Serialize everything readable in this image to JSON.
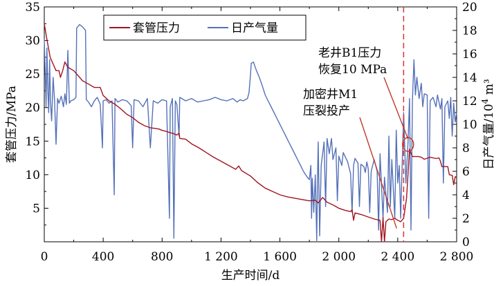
{
  "chart_data": {
    "type": "line",
    "dual_axis": true,
    "xlabel": "生产时间/d",
    "ylabel_left": "套管压力/MPa",
    "ylabel_right": "日产气量/10⁴ m³",
    "ylabel_right_main": "日产气量/10",
    "ylabel_right_sup": "4",
    "ylabel_right_tail": " m³",
    "xlim": [
      0,
      2800
    ],
    "ylim_left": [
      0,
      35
    ],
    "ylim_right": [
      0,
      20
    ],
    "x_ticks": [
      0,
      400,
      800,
      1200,
      1600,
      2000,
      2400,
      2800
    ],
    "x_tick_labels": [
      "0",
      "400",
      "800",
      "1 200",
      "1 600",
      "2 000",
      "2 400",
      "2 800"
    ],
    "y_left_ticks": [
      5,
      10,
      15,
      20,
      25,
      30,
      35
    ],
    "y_right_ticks": [
      0,
      2,
      4,
      6,
      8,
      10,
      12,
      14,
      16,
      18,
      20
    ],
    "legend_position": "top-center",
    "grid": false,
    "colors": {
      "pressure": "#a0141e",
      "gas": "#5470b8",
      "reference_line": "#e03030",
      "annotation": "#c0392b"
    },
    "series": [
      {
        "name": "套管压力",
        "axis": "left",
        "color": "#a0141e",
        "points": [
          [
            0,
            32.5
          ],
          [
            15,
            30.5
          ],
          [
            40,
            27.5
          ],
          [
            80,
            25.5
          ],
          [
            100,
            25.5
          ],
          [
            110,
            24.5
          ],
          [
            125,
            25.5
          ],
          [
            140,
            26.8
          ],
          [
            160,
            26.0
          ],
          [
            200,
            25.5
          ],
          [
            240,
            24.5
          ],
          [
            260,
            24.0
          ],
          [
            300,
            23.5
          ],
          [
            340,
            23.0
          ],
          [
            380,
            23.0
          ],
          [
            400,
            21.8
          ],
          [
            440,
            21.0
          ],
          [
            480,
            20.5
          ],
          [
            520,
            19.8
          ],
          [
            560,
            19.0
          ],
          [
            600,
            18.5
          ],
          [
            640,
            17.8
          ],
          [
            680,
            17.3
          ],
          [
            720,
            17.0
          ],
          [
            750,
            16.9
          ],
          [
            780,
            16.8
          ],
          [
            800,
            16.6
          ],
          [
            820,
            16.5
          ],
          [
            850,
            16.3
          ],
          [
            880,
            16.1
          ],
          [
            900,
            15.9
          ],
          [
            915,
            16.2
          ],
          [
            920,
            15.4
          ],
          [
            960,
            15.3
          ],
          [
            1000,
            14.6
          ],
          [
            1050,
            14.0
          ],
          [
            1100,
            13.3
          ],
          [
            1150,
            12.6
          ],
          [
            1200,
            12.0
          ],
          [
            1250,
            11.4
          ],
          [
            1300,
            10.8
          ],
          [
            1320,
            11.3
          ],
          [
            1340,
            10.6
          ],
          [
            1400,
            9.8
          ],
          [
            1450,
            8.8
          ],
          [
            1500,
            8.0
          ],
          [
            1550,
            7.5
          ],
          [
            1600,
            7.0
          ],
          [
            1650,
            6.7
          ],
          [
            1700,
            6.5
          ],
          [
            1750,
            6.3
          ],
          [
            1800,
            6.1
          ],
          [
            1840,
            6.2
          ],
          [
            1860,
            5.8
          ],
          [
            1890,
            6.6
          ],
          [
            1920,
            5.9
          ],
          [
            1960,
            5.5
          ],
          [
            2000,
            5.0
          ],
          [
            2040,
            4.7
          ],
          [
            2080,
            4.5
          ],
          [
            2090,
            4.8
          ],
          [
            2100,
            3.2
          ],
          [
            2110,
            4.3
          ],
          [
            2160,
            4.0
          ],
          [
            2200,
            3.7
          ],
          [
            2240,
            3.4
          ],
          [
            2280,
            3.2
          ],
          [
            2290,
            0.0
          ],
          [
            2300,
            3.6
          ],
          [
            2310,
            0.0
          ],
          [
            2320,
            3.0
          ],
          [
            2340,
            3.4
          ],
          [
            2360,
            3.3
          ],
          [
            2380,
            3.5
          ],
          [
            2400,
            3.2
          ],
          [
            2420,
            3.0
          ],
          [
            2440,
            3.5
          ],
          [
            2460,
            6.5
          ],
          [
            2480,
            13.8
          ],
          [
            2485,
            13.5
          ],
          [
            2500,
            12.7
          ],
          [
            2540,
            12.7
          ],
          [
            2560,
            12.6
          ],
          [
            2580,
            12.3
          ],
          [
            2620,
            12.6
          ],
          [
            2660,
            12.4
          ],
          [
            2680,
            12.5
          ],
          [
            2690,
            12.0
          ],
          [
            2700,
            11.2
          ],
          [
            2740,
            11.2
          ],
          [
            2750,
            10.0
          ],
          [
            2770,
            9.9
          ],
          [
            2780,
            8.5
          ],
          [
            2790,
            9.7
          ],
          [
            2800,
            9.6
          ]
        ]
      },
      {
        "name": "日产气量",
        "axis": "right",
        "color": "#5470b8",
        "points": [
          [
            0,
            17.3
          ],
          [
            6,
            14.5
          ],
          [
            12,
            11.5
          ],
          [
            18,
            16.5
          ],
          [
            24,
            13.0
          ],
          [
            30,
            11.0
          ],
          [
            36,
            15.5
          ],
          [
            42,
            12.0
          ],
          [
            50,
            10.3
          ],
          [
            60,
            14.0
          ],
          [
            70,
            12.0
          ],
          [
            80,
            8.3
          ],
          [
            90,
            12.2
          ],
          [
            100,
            11.8
          ],
          [
            115,
            12.4
          ],
          [
            130,
            11.5
          ],
          [
            140,
            12.6
          ],
          [
            150,
            11.7
          ],
          [
            160,
            16.3
          ],
          [
            170,
            11.8
          ],
          [
            180,
            12.0
          ],
          [
            200,
            12.1
          ],
          [
            215,
            12.3
          ],
          [
            220,
            18.2
          ],
          [
            240,
            18.5
          ],
          [
            260,
            18.3
          ],
          [
            280,
            18.0
          ],
          [
            285,
            12.1
          ],
          [
            300,
            11.9
          ],
          [
            320,
            11.5
          ],
          [
            340,
            12.0
          ],
          [
            360,
            12.3
          ],
          [
            380,
            11.7
          ],
          [
            395,
            8.0
          ],
          [
            400,
            12.0
          ],
          [
            420,
            12.1
          ],
          [
            440,
            11.8
          ],
          [
            460,
            12.0
          ],
          [
            475,
            4.0
          ],
          [
            480,
            12.2
          ],
          [
            500,
            11.9
          ],
          [
            530,
            12.1
          ],
          [
            560,
            12.0
          ],
          [
            590,
            11.6
          ],
          [
            600,
            8.0
          ],
          [
            610,
            12.1
          ],
          [
            640,
            12.0
          ],
          [
            670,
            11.5
          ],
          [
            700,
            12.2
          ],
          [
            720,
            8.0
          ],
          [
            740,
            12.0
          ],
          [
            770,
            11.8
          ],
          [
            800,
            12.1
          ],
          [
            830,
            12.0
          ],
          [
            850,
            2.0
          ],
          [
            855,
            11.5
          ],
          [
            870,
            12.2
          ],
          [
            880,
            0.3
          ],
          [
            890,
            12.0
          ],
          [
            900,
            11.7
          ],
          [
            915,
            9.0
          ],
          [
            920,
            12.3
          ],
          [
            960,
            12.0
          ],
          [
            1000,
            12.2
          ],
          [
            1040,
            11.9
          ],
          [
            1080,
            12.0
          ],
          [
            1120,
            12.1
          ],
          [
            1160,
            12.3
          ],
          [
            1200,
            12.1
          ],
          [
            1240,
            12.0
          ],
          [
            1280,
            12.2
          ],
          [
            1310,
            11.9
          ],
          [
            1330,
            12.1
          ],
          [
            1350,
            12.0
          ],
          [
            1380,
            12.2
          ],
          [
            1390,
            12.7
          ],
          [
            1400,
            14.2
          ],
          [
            1405,
            15.2
          ],
          [
            1420,
            15.3
          ],
          [
            1440,
            14.6
          ],
          [
            1460,
            14.0
          ],
          [
            1480,
            13.3
          ],
          [
            1500,
            12.5
          ],
          [
            1520,
            12.0
          ],
          [
            1540,
            11.5
          ],
          [
            1560,
            11.0
          ],
          [
            1580,
            10.5
          ],
          [
            1600,
            10.0
          ],
          [
            1620,
            9.5
          ],
          [
            1640,
            9.0
          ],
          [
            1660,
            8.5
          ],
          [
            1680,
            8.0
          ],
          [
            1700,
            7.5
          ],
          [
            1720,
            7.0
          ],
          [
            1740,
            6.5
          ],
          [
            1760,
            6.0
          ],
          [
            1780,
            5.6
          ],
          [
            1800,
            5.3
          ],
          [
            1810,
            6.5
          ],
          [
            1815,
            2.0
          ],
          [
            1820,
            5.4
          ],
          [
            1830,
            2.5
          ],
          [
            1840,
            5.7
          ],
          [
            1850,
            0.1
          ],
          [
            1855,
            5.0
          ],
          [
            1860,
            8.5
          ],
          [
            1870,
            0.5
          ],
          [
            1880,
            6.5
          ],
          [
            1900,
            8.5
          ],
          [
            1910,
            3.0
          ],
          [
            1920,
            8.8
          ],
          [
            1935,
            7.5
          ],
          [
            1950,
            8.8
          ],
          [
            1960,
            7.0
          ],
          [
            1980,
            8.0
          ],
          [
            1990,
            3.5
          ],
          [
            2000,
            7.3
          ],
          [
            2020,
            6.5
          ],
          [
            2030,
            7.6
          ],
          [
            2060,
            6.8
          ],
          [
            2080,
            5.8
          ],
          [
            2090,
            2.5
          ],
          [
            2100,
            6.5
          ],
          [
            2110,
            7.1
          ],
          [
            2130,
            6.7
          ],
          [
            2140,
            3.0
          ],
          [
            2150,
            6.6
          ],
          [
            2170,
            6.4
          ],
          [
            2180,
            5.9
          ],
          [
            2190,
            6.8
          ],
          [
            2200,
            6.2
          ],
          [
            2210,
            2.5
          ],
          [
            2220,
            6.0
          ],
          [
            2240,
            7.0
          ],
          [
            2260,
            6.0
          ],
          [
            2270,
            1.0
          ],
          [
            2280,
            7.5
          ],
          [
            2300,
            2.0
          ],
          [
            2310,
            5.5
          ],
          [
            2330,
            2.5
          ],
          [
            2340,
            9.0
          ],
          [
            2350,
            3.0
          ],
          [
            2360,
            7.0
          ],
          [
            2380,
            2.0
          ],
          [
            2390,
            9.5
          ],
          [
            2400,
            5.0
          ],
          [
            2410,
            6.5
          ],
          [
            2420,
            2.0
          ],
          [
            2440,
            11.0
          ],
          [
            2455,
            5.0
          ],
          [
            2470,
            8.5
          ],
          [
            2480,
            12.2
          ],
          [
            2490,
            1.0
          ],
          [
            2500,
            12.0
          ],
          [
            2510,
            15.5
          ],
          [
            2520,
            12.5
          ],
          [
            2530,
            14.0
          ],
          [
            2545,
            12.2
          ],
          [
            2560,
            13.5
          ],
          [
            2570,
            11.5
          ],
          [
            2580,
            12.6
          ],
          [
            2600,
            12.5
          ],
          [
            2610,
            2.0
          ],
          [
            2620,
            12.0
          ],
          [
            2640,
            12.3
          ],
          [
            2660,
            11.5
          ],
          [
            2670,
            12.5
          ],
          [
            2690,
            11.3
          ],
          [
            2700,
            12.2
          ],
          [
            2710,
            5.0
          ],
          [
            2720,
            11.5
          ],
          [
            2740,
            12.0
          ],
          [
            2750,
            10.5
          ],
          [
            2760,
            12.3
          ],
          [
            2770,
            9.0
          ],
          [
            2780,
            11.8
          ],
          [
            2790,
            10.2
          ],
          [
            2800,
            11.0
          ]
        ]
      }
    ],
    "reference_line": {
      "x": 2440,
      "style": "dashed"
    },
    "annotations": [
      {
        "lines": [
          "老井B1压力",
          "恢复10 MPa"
        ],
        "target_x": 2470,
        "target_y_left": 11.0
      },
      {
        "lines": [
          "加密井M1",
          "压裂投产"
        ],
        "target_x": 2430,
        "target_y_left": 2.0
      }
    ],
    "circle_marker": {
      "x": 2470,
      "y_left": 14.5
    }
  }
}
